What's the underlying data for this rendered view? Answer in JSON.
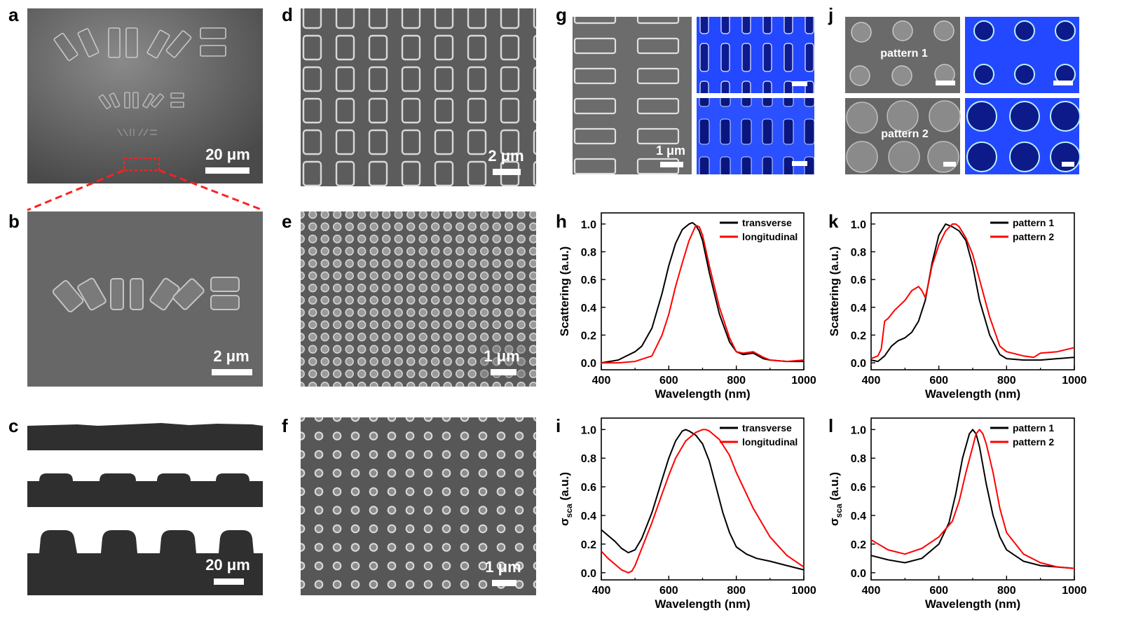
{
  "panels": {
    "a": {
      "label": "a",
      "scalebar": "20 μm"
    },
    "b": {
      "label": "b",
      "scalebar": "2 μm"
    },
    "c": {
      "label": "c",
      "scalebar": "20 μm"
    },
    "d": {
      "label": "d",
      "scalebar": "2 μm"
    },
    "e": {
      "label": "e",
      "scalebar": "1 μm"
    },
    "f": {
      "label": "f",
      "scalebar": "1 μm"
    },
    "g": {
      "label": "g",
      "scalebar": "1 μm"
    },
    "h": {
      "label": "h"
    },
    "i": {
      "label": "i"
    },
    "j": {
      "label": "j",
      "pattern1_label": "pattern 1",
      "pattern2_label": "pattern 2"
    },
    "k": {
      "label": "k"
    },
    "l": {
      "label": "l"
    }
  },
  "colors": {
    "black_curve": "#000000",
    "red_curve": "#ff0000",
    "sem_gray": "#6e6e6e",
    "sim_blue": "#1f3fff"
  },
  "chart_data": [
    {
      "id": "h",
      "type": "line",
      "xlabel": "Wavelength (nm)",
      "ylabel": "Scattering (a.u.)",
      "xlim": [
        400,
        1000
      ],
      "ylim": [
        -0.05,
        1.08
      ],
      "xticks": [
        400,
        600,
        800,
        1000
      ],
      "yticks": [
        0.0,
        0.2,
        0.4,
        0.6,
        0.8,
        1.0
      ],
      "legend": "top-right",
      "series": [
        {
          "name": "transverse",
          "color": "#000000",
          "x": [
            400,
            450,
            500,
            520,
            550,
            580,
            600,
            620,
            640,
            660,
            670,
            680,
            690,
            700,
            720,
            750,
            780,
            800,
            820,
            850,
            880,
            900,
            950,
            1000
          ],
          "y": [
            0.0,
            0.02,
            0.08,
            0.12,
            0.25,
            0.5,
            0.7,
            0.86,
            0.96,
            1.0,
            1.01,
            0.99,
            0.95,
            0.88,
            0.65,
            0.35,
            0.15,
            0.08,
            0.06,
            0.07,
            0.03,
            0.02,
            0.01,
            0.01
          ]
        },
        {
          "name": "longitudinal",
          "color": "#ff0000",
          "x": [
            400,
            450,
            500,
            550,
            580,
            600,
            620,
            640,
            660,
            680,
            690,
            700,
            720,
            750,
            780,
            800,
            820,
            850,
            880,
            900,
            950,
            1000
          ],
          "y": [
            0.0,
            0.0,
            0.01,
            0.05,
            0.2,
            0.35,
            0.55,
            0.72,
            0.88,
            0.99,
            0.98,
            0.92,
            0.7,
            0.4,
            0.18,
            0.08,
            0.07,
            0.08,
            0.04,
            0.02,
            0.01,
            0.02
          ]
        }
      ]
    },
    {
      "id": "i",
      "type": "line",
      "xlabel": "Wavelength (nm)",
      "ylabel": "σsca (a.u.)",
      "xlim": [
        400,
        1000
      ],
      "ylim": [
        -0.05,
        1.08
      ],
      "xticks": [
        400,
        600,
        800,
        1000
      ],
      "yticks": [
        0.0,
        0.2,
        0.4,
        0.6,
        0.8,
        1.0
      ],
      "legend": "top-right",
      "series": [
        {
          "name": "transverse",
          "color": "#000000",
          "x": [
            400,
            420,
            440,
            460,
            480,
            500,
            520,
            550,
            580,
            600,
            620,
            640,
            650,
            660,
            680,
            700,
            720,
            740,
            760,
            780,
            800,
            830,
            860,
            900,
            950,
            1000
          ],
          "y": [
            0.3,
            0.26,
            0.22,
            0.17,
            0.14,
            0.16,
            0.24,
            0.42,
            0.65,
            0.8,
            0.92,
            0.99,
            1.0,
            0.99,
            0.96,
            0.9,
            0.78,
            0.6,
            0.42,
            0.28,
            0.18,
            0.13,
            0.1,
            0.08,
            0.05,
            0.02
          ]
        },
        {
          "name": "longitudinal",
          "color": "#ff0000",
          "x": [
            400,
            420,
            440,
            460,
            480,
            490,
            500,
            520,
            550,
            580,
            600,
            620,
            650,
            680,
            700,
            710,
            720,
            750,
            780,
            800,
            850,
            900,
            950,
            1000
          ],
          "y": [
            0.15,
            0.1,
            0.06,
            0.02,
            0.0,
            0.01,
            0.05,
            0.17,
            0.35,
            0.55,
            0.68,
            0.8,
            0.92,
            0.98,
            1.0,
            1.0,
            0.99,
            0.93,
            0.82,
            0.7,
            0.45,
            0.25,
            0.12,
            0.04
          ]
        }
      ]
    },
    {
      "id": "k",
      "type": "line",
      "xlabel": "Wavelength (nm)",
      "ylabel": "Scattering (a.u.)",
      "xlim": [
        400,
        1000
      ],
      "ylim": [
        -0.05,
        1.08
      ],
      "xticks": [
        400,
        600,
        800,
        1000
      ],
      "yticks": [
        0.0,
        0.2,
        0.4,
        0.6,
        0.8,
        1.0
      ],
      "legend": "top-right",
      "series": [
        {
          "name": "pattern 1",
          "color": "#000000",
          "x": [
            400,
            420,
            440,
            460,
            480,
            500,
            520,
            540,
            560,
            580,
            600,
            620,
            640,
            660,
            680,
            700,
            720,
            750,
            780,
            800,
            850,
            900,
            950,
            1000
          ],
          "y": [
            0.02,
            0.01,
            0.05,
            0.12,
            0.16,
            0.18,
            0.22,
            0.3,
            0.45,
            0.72,
            0.92,
            1.0,
            0.98,
            0.95,
            0.88,
            0.7,
            0.45,
            0.2,
            0.06,
            0.03,
            0.02,
            0.02,
            0.03,
            0.04
          ]
        },
        {
          "name": "pattern 2",
          "color": "#ff0000",
          "x": [
            400,
            420,
            430,
            440,
            450,
            470,
            500,
            520,
            540,
            550,
            560,
            570,
            580,
            600,
            620,
            640,
            650,
            660,
            680,
            700,
            720,
            750,
            780,
            800,
            850,
            880,
            900,
            950,
            1000
          ],
          "y": [
            0.03,
            0.05,
            0.1,
            0.3,
            0.32,
            0.38,
            0.45,
            0.52,
            0.55,
            0.52,
            0.47,
            0.58,
            0.7,
            0.85,
            0.95,
            1.0,
            1.0,
            0.98,
            0.9,
            0.78,
            0.6,
            0.33,
            0.12,
            0.08,
            0.05,
            0.04,
            0.07,
            0.08,
            0.11
          ]
        }
      ]
    },
    {
      "id": "l",
      "type": "line",
      "xlabel": "Wavelength (nm)",
      "ylabel": "σsca (a.u.)",
      "xlim": [
        400,
        1000
      ],
      "ylim": [
        -0.05,
        1.08
      ],
      "xticks": [
        400,
        600,
        800,
        1000
      ],
      "yticks": [
        0.0,
        0.2,
        0.4,
        0.6,
        0.8,
        1.0
      ],
      "legend": "top-right",
      "series": [
        {
          "name": "pattern 1",
          "color": "#000000",
          "x": [
            400,
            450,
            500,
            550,
            600,
            630,
            650,
            670,
            690,
            700,
            710,
            720,
            740,
            760,
            780,
            800,
            850,
            900,
            950,
            1000
          ],
          "y": [
            0.12,
            0.09,
            0.07,
            0.1,
            0.2,
            0.35,
            0.55,
            0.8,
            0.97,
            1.0,
            0.97,
            0.88,
            0.62,
            0.4,
            0.25,
            0.16,
            0.08,
            0.05,
            0.04,
            0.03
          ]
        },
        {
          "name": "pattern 2",
          "color": "#ff0000",
          "x": [
            400,
            450,
            500,
            550,
            600,
            640,
            660,
            680,
            700,
            710,
            720,
            730,
            740,
            760,
            780,
            800,
            850,
            900,
            950,
            1000
          ],
          "y": [
            0.23,
            0.16,
            0.13,
            0.17,
            0.25,
            0.36,
            0.5,
            0.7,
            0.88,
            0.97,
            1.0,
            0.97,
            0.9,
            0.7,
            0.45,
            0.28,
            0.13,
            0.07,
            0.04,
            0.03
          ]
        }
      ]
    }
  ]
}
